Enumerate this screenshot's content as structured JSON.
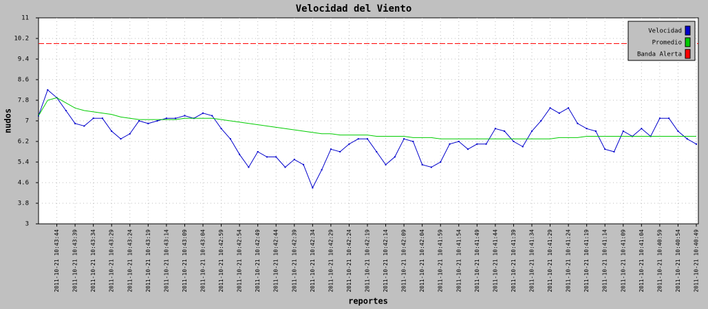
{
  "chart_data": {
    "type": "line",
    "title": "Velocidad del Viento",
    "x_label": "reportes",
    "y_label": "nudos",
    "categories": [
      null,
      null,
      "2011-10-21 10:43:44",
      null,
      "2011-10-21 10:43:39",
      null,
      "2011-10-21 10:43:34",
      null,
      "2011-10-21 10:43:29",
      null,
      "2011-10-21 10:43:24",
      null,
      "2011-10-21 10:43:19",
      null,
      "2011-10-21 10:43:14",
      null,
      "2011-10-21 10:43:09",
      null,
      "2011-10-21 10:43:04",
      null,
      "2011-10-21 10:42:59",
      null,
      "2011-10-21 10:42:54",
      null,
      "2011-10-21 10:42:49",
      null,
      "2011-10-21 10:42:44",
      null,
      "2011-10-21 10:42:39",
      null,
      "2011-10-21 10:42:34",
      null,
      "2011-10-21 10:42:29",
      null,
      "2011-10-21 10:42:24",
      null,
      "2011-10-21 10:42:19",
      null,
      "2011-10-21 10:42:14",
      null,
      "2011-10-21 10:42:09",
      null,
      "2011-10-21 10:42:04",
      null,
      "2011-10-21 10:41:59",
      null,
      "2011-10-21 10:41:54",
      null,
      "2011-10-21 10:41:49",
      null,
      "2011-10-21 10:41:44",
      null,
      "2011-10-21 10:41:39",
      null,
      "2011-10-21 10:41:34",
      null,
      "2011-10-21 10:41:29",
      null,
      "2011-10-21 10:41:24",
      null,
      "2011-10-21 10:41:19",
      null,
      "2011-10-21 10:41:14",
      null,
      "2011-10-21 10:41:09",
      null,
      "2011-10-21 10:41:04",
      null,
      "2011-10-21 10:40:59",
      null,
      "2011-10-21 10:40:54",
      null,
      "2011-10-21 10:40:49"
    ],
    "series": [
      {
        "name": "Velocidad",
        "color": "#0000cc",
        "values": [
          7.2,
          8.2,
          7.9,
          7.4,
          6.9,
          6.8,
          7.1,
          7.1,
          6.6,
          6.3,
          6.5,
          7.0,
          6.9,
          7.0,
          7.1,
          7.1,
          7.2,
          7.1,
          7.3,
          7.2,
          6.7,
          6.3,
          5.7,
          5.2,
          5.8,
          5.6,
          5.6,
          5.2,
          5.5,
          5.3,
          4.4,
          5.1,
          5.9,
          5.8,
          6.1,
          6.3,
          6.3,
          5.8,
          5.3,
          5.6,
          6.3,
          6.2,
          5.3,
          5.2,
          5.4,
          6.1,
          6.2,
          5.9,
          6.1,
          6.1,
          6.7,
          6.6,
          6.2,
          6.0,
          6.6,
          7.0,
          7.5,
          7.3,
          7.5,
          6.9,
          6.7,
          6.6,
          5.9,
          5.8,
          6.6,
          6.4,
          6.7,
          6.4,
          7.1,
          7.1,
          6.6,
          6.3,
          6.1
        ]
      },
      {
        "name": "Promedio",
        "color": "#00cc00",
        "values": [
          7.2,
          7.8,
          7.9,
          7.7,
          7.5,
          7.4,
          7.35,
          7.3,
          7.25,
          7.15,
          7.1,
          7.05,
          7.05,
          7.05,
          7.05,
          7.05,
          7.1,
          7.1,
          7.1,
          7.1,
          7.05,
          7.0,
          6.95,
          6.9,
          6.85,
          6.8,
          6.75,
          6.7,
          6.65,
          6.6,
          6.55,
          6.5,
          6.5,
          6.45,
          6.45,
          6.45,
          6.45,
          6.4,
          6.4,
          6.4,
          6.4,
          6.35,
          6.35,
          6.35,
          6.3,
          6.3,
          6.3,
          6.3,
          6.3,
          6.3,
          6.3,
          6.3,
          6.3,
          6.3,
          6.3,
          6.3,
          6.3,
          6.35,
          6.35,
          6.35,
          6.4,
          6.4,
          6.4,
          6.4,
          6.4,
          6.4,
          6.4,
          6.4,
          6.4,
          6.4,
          6.4,
          6.4,
          6.4
        ]
      },
      {
        "name": "Banda Alerta",
        "color": "#ff0000",
        "value": 10
      }
    ],
    "ylim": [
      3,
      11
    ],
    "yticks": [
      3,
      3.8,
      4.6,
      5.4,
      6.2,
      7,
      7.8,
      8.6,
      9.4,
      10.2,
      11
    ],
    "grid": true,
    "legend": "top-right"
  }
}
